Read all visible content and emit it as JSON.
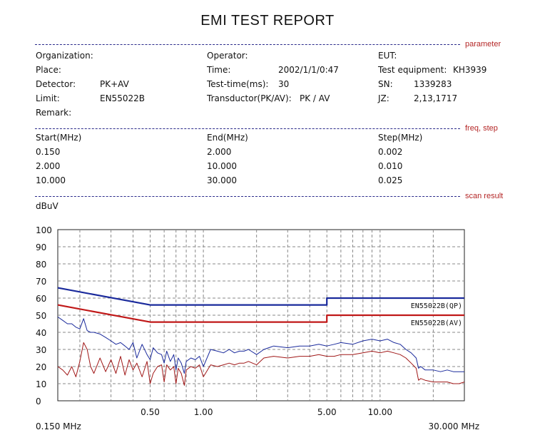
{
  "report_title": "EMI TEST REPORT",
  "section_tags": {
    "parameter": "parameter",
    "freq_step": "freq, step",
    "scan_result": "scan result"
  },
  "parameters": {
    "organization": "Organization:",
    "place": "Place:",
    "detector_label": "Detector:",
    "detector_value": "PK+AV",
    "limit_label": "Limit:",
    "limit_value": "EN55022B",
    "remark": "Remark:",
    "operator": "Operator:",
    "time_label": "Time:",
    "time_value": "2002/1/1/0:47",
    "test_time_label": "Test-time(ms):",
    "test_time_value": "30",
    "transductor_label": "Transductor(PK/AV):",
    "transductor_value": "PK  /  AV",
    "eut": "EUT:",
    "test_equipment_label": "Test equipment:",
    "test_equipment_value": "KH3939",
    "sn_label": "SN:",
    "sn_value": "1339283",
    "jz_label": "JZ:",
    "jz_value": "2,13,1717"
  },
  "freq_table": {
    "headers": [
      "Start(MHz)",
      "End(MHz)",
      "Step(MHz)"
    ],
    "rows": [
      [
        "0.150",
        "2.000",
        "0.002"
      ],
      [
        "2.000",
        "10.000",
        "0.010"
      ],
      [
        "10.000",
        "30.000",
        "0.025"
      ]
    ]
  },
  "colors": {
    "qp_limit": "#1a2a9c",
    "av_limit": "#c01818",
    "pk_trace": "#1a2a9c",
    "av_trace": "#a01818",
    "grid": "#888888",
    "separator": "#2a2a8a",
    "tag": "#b42626"
  },
  "chart_data": {
    "type": "line",
    "ylabel": "dBuV",
    "ylim": [
      0,
      100
    ],
    "yticks": [
      100,
      90,
      80,
      70,
      60,
      50,
      40,
      30,
      20,
      10,
      0
    ],
    "xscale": "log",
    "xlim": [
      0.15,
      30
    ],
    "xticks": [
      {
        "value": 0.5,
        "label": "0.50"
      },
      {
        "value": 1,
        "label": "1.00"
      },
      {
        "value": 5,
        "label": "5.00"
      },
      {
        "value": 10,
        "label": "10.00"
      }
    ],
    "x_start_label": "0.150 MHz",
    "x_end_label": "30.000 MHz",
    "grid": true,
    "series": [
      {
        "name": "EN55022B(QP)",
        "kind": "limit",
        "x": [
          0.15,
          0.5,
          0.5,
          5,
          5,
          30
        ],
        "y": [
          66,
          56,
          56,
          56,
          60,
          60
        ]
      },
      {
        "name": "EN55022B(AV)",
        "kind": "limit",
        "x": [
          0.15,
          0.5,
          0.5,
          5,
          5,
          30
        ],
        "y": [
          56,
          46,
          46,
          46,
          50,
          50
        ]
      },
      {
        "kind": "measured_pk",
        "x": [
          0.15,
          0.16,
          0.17,
          0.18,
          0.19,
          0.2,
          0.21,
          0.22,
          0.23,
          0.24,
          0.26,
          0.28,
          0.3,
          0.32,
          0.34,
          0.36,
          0.38,
          0.4,
          0.42,
          0.45,
          0.48,
          0.5,
          0.52,
          0.55,
          0.58,
          0.6,
          0.62,
          0.65,
          0.68,
          0.7,
          0.72,
          0.75,
          0.78,
          0.8,
          0.85,
          0.9,
          0.95,
          1.0,
          1.1,
          1.2,
          1.3,
          1.4,
          1.5,
          1.6,
          1.7,
          1.8,
          2.0,
          2.2,
          2.5,
          3.0,
          3.5,
          4.0,
          4.5,
          5.0,
          5.5,
          6.0,
          7.0,
          8.0,
          9.0,
          10.0,
          11.0,
          12.0,
          13.0,
          14.0,
          15.0,
          16.0,
          16.5,
          17.0,
          18.0,
          20.0,
          22.0,
          24.0,
          26.0,
          28.0,
          30.0
        ],
        "y": [
          49,
          47,
          45,
          45,
          43,
          42,
          48,
          41,
          40,
          40,
          39,
          37,
          35,
          33,
          34,
          32,
          30,
          34,
          25,
          33,
          27,
          24,
          31,
          28,
          27,
          22,
          29,
          23,
          27,
          18,
          25,
          22,
          16,
          23,
          25,
          24,
          26,
          20,
          30,
          29,
          28,
          30,
          28,
          29,
          29,
          30,
          27,
          30,
          32,
          31,
          32,
          32,
          33,
          32,
          33,
          34,
          33,
          35,
          36,
          35,
          36,
          34,
          33,
          30,
          28,
          25,
          19,
          20,
          18,
          18,
          17,
          18,
          17,
          17,
          17
        ]
      },
      {
        "kind": "measured_av",
        "x": [
          0.15,
          0.16,
          0.17,
          0.18,
          0.19,
          0.2,
          0.21,
          0.22,
          0.23,
          0.24,
          0.26,
          0.28,
          0.3,
          0.32,
          0.34,
          0.36,
          0.38,
          0.4,
          0.42,
          0.45,
          0.48,
          0.5,
          0.52,
          0.55,
          0.58,
          0.6,
          0.62,
          0.65,
          0.68,
          0.7,
          0.72,
          0.75,
          0.78,
          0.8,
          0.85,
          0.9,
          0.95,
          1.0,
          1.1,
          1.2,
          1.3,
          1.4,
          1.5,
          1.6,
          1.7,
          1.8,
          2.0,
          2.2,
          2.5,
          3.0,
          3.5,
          4.0,
          4.5,
          5.0,
          5.5,
          6.0,
          7.0,
          8.0,
          9.0,
          10.0,
          11.0,
          12.0,
          13.0,
          14.0,
          15.0,
          16.0,
          16.5,
          17.0,
          18.0,
          20.0,
          22.0,
          24.0,
          26.0,
          28.0,
          30.0
        ],
        "y": [
          20,
          18,
          15,
          20,
          14,
          23,
          34,
          30,
          20,
          16,
          25,
          17,
          24,
          16,
          26,
          15,
          24,
          18,
          22,
          14,
          23,
          10,
          16,
          20,
          21,
          11,
          21,
          18,
          20,
          10,
          19,
          16,
          9,
          18,
          20,
          19,
          21,
          14,
          21,
          20,
          21,
          22,
          21,
          22,
          22,
          23,
          21,
          25,
          26,
          25,
          26,
          26,
          27,
          26,
          26,
          27,
          27,
          28,
          29,
          28,
          29,
          28,
          27,
          25,
          22,
          19,
          12,
          13,
          12,
          11,
          11,
          11,
          10,
          10,
          11
        ]
      }
    ]
  }
}
